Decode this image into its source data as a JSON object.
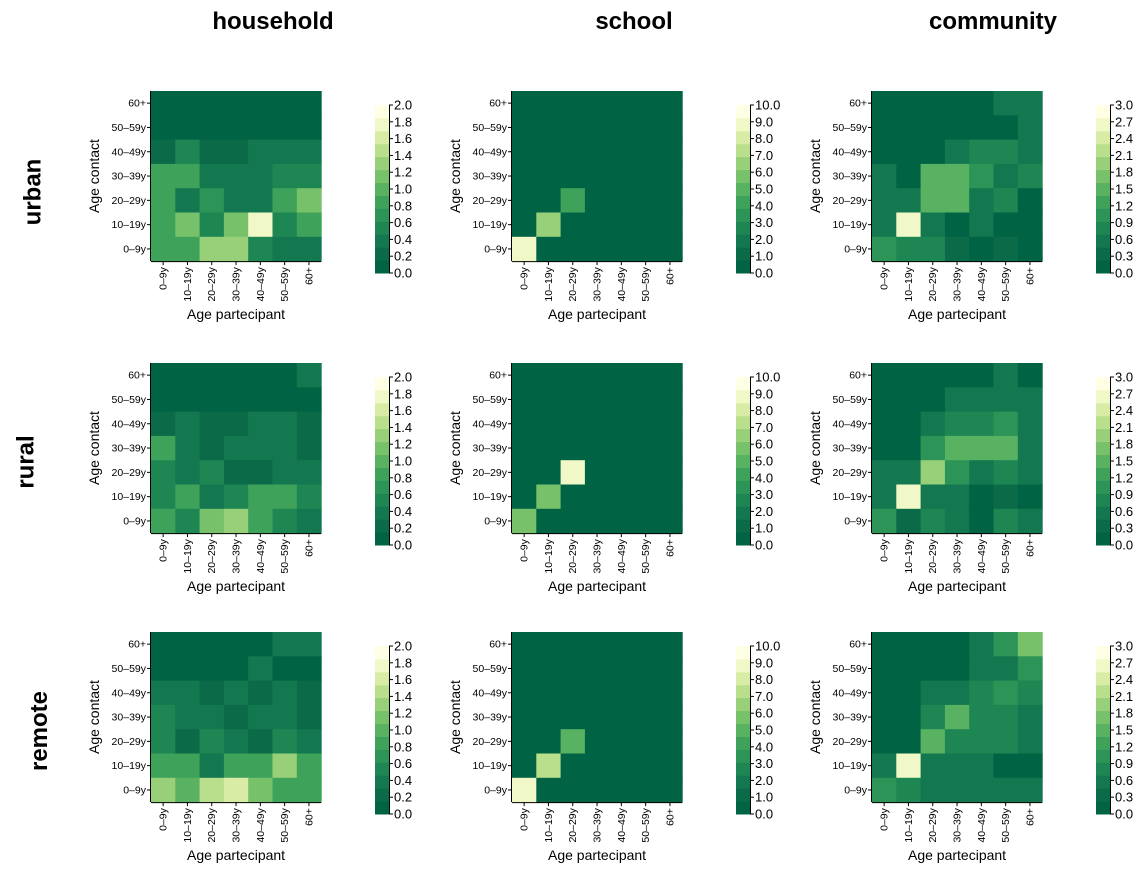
{
  "column_titles": [
    "household",
    "school",
    "community"
  ],
  "row_titles": [
    "urban",
    "rural",
    "remote"
  ],
  "colors": {
    "scale": [
      "#006344",
      "#0b6b49",
      "#137850",
      "#1e8653",
      "#2c9456",
      "#3fa25b",
      "#59b162",
      "#77c16b",
      "#98d079",
      "#badf8c",
      "#d9eca5",
      "#f1f8c8",
      "#ffffe5"
    ],
    "axis": "#000000"
  },
  "chart_data": [
    {
      "type": "heatmap",
      "area": "urban",
      "setting": "household",
      "x_categories": [
        "0–9y",
        "10–19y",
        "20–29y",
        "30–39y",
        "40–49y",
        "50–59y",
        "60+"
      ],
      "y_categories": [
        "0–9y",
        "10–19y",
        "20–29y",
        "30–39y",
        "40–49y",
        "50–59y",
        "60+"
      ],
      "xlabel": "Age partecipant",
      "ylabel": "Age contact",
      "zlim": [
        0,
        2
      ],
      "colorbar_ticks": [
        "0.0",
        "0.2",
        "0.4",
        "0.6",
        "0.8",
        "1.0",
        "1.2",
        "1.4",
        "1.6",
        "1.8",
        "2.0"
      ],
      "values": [
        [
          0.0,
          0.0,
          0.0,
          0.0,
          0.0,
          0.0,
          0.0
        ],
        [
          0.0,
          0.0,
          0.0,
          0.0,
          0.0,
          0.0,
          0.0
        ],
        [
          0.1,
          0.5,
          0.1,
          0.1,
          0.3,
          0.3,
          0.3
        ],
        [
          0.9,
          0.9,
          0.3,
          0.3,
          0.3,
          0.5,
          0.5
        ],
        [
          0.9,
          0.3,
          0.7,
          0.3,
          0.3,
          0.8,
          1.1
        ],
        [
          0.9,
          1.1,
          0.5,
          1.1,
          1.8,
          0.5,
          0.8
        ],
        [
          0.9,
          0.9,
          1.3,
          1.4,
          0.5,
          0.3,
          0.3
        ]
      ]
    },
    {
      "type": "heatmap",
      "area": "urban",
      "setting": "school",
      "x_categories": [
        "0–9y",
        "10–19y",
        "20–29y",
        "30–39y",
        "40–49y",
        "50–59y",
        "60+"
      ],
      "y_categories": [
        "0–9y",
        "10–19y",
        "20–29y",
        "30–39y",
        "40–49y",
        "50–59y",
        "60+"
      ],
      "xlabel": "Age partecipant",
      "ylabel": "Age contact",
      "zlim": [
        0,
        10
      ],
      "colorbar_ticks": [
        "0.0",
        "1.0",
        "2.0",
        "3.0",
        "4.0",
        "5.0",
        "6.0",
        "7.0",
        "8.0",
        "9.0",
        "10.0"
      ],
      "values": [
        [
          0,
          0,
          0,
          0,
          0,
          0,
          0
        ],
        [
          0,
          0,
          0,
          0,
          0,
          0,
          0
        ],
        [
          0,
          0,
          0,
          0,
          0,
          0,
          0
        ],
        [
          0,
          0,
          0,
          0,
          0,
          0,
          0
        ],
        [
          0,
          0,
          4.2,
          0,
          0,
          0,
          0
        ],
        [
          0,
          6.8,
          0,
          0,
          0,
          0,
          0
        ],
        [
          9.0,
          0,
          0,
          0,
          0,
          0,
          0
        ]
      ]
    },
    {
      "type": "heatmap",
      "area": "urban",
      "setting": "community",
      "x_categories": [
        "0–9y",
        "10–19y",
        "20–29y",
        "30–39y",
        "40–49y",
        "50–59y",
        "60+"
      ],
      "y_categories": [
        "0–9y",
        "10–19y",
        "20–29y",
        "30–39y",
        "40–49y",
        "50–59y",
        "60+"
      ],
      "xlabel": "Age partecipant",
      "ylabel": "Age contact",
      "zlim": [
        0,
        3
      ],
      "colorbar_ticks": [
        "0.0",
        "0.3",
        "0.6",
        "0.9",
        "1.2",
        "1.5",
        "1.8",
        "2.1",
        "2.4",
        "2.7",
        "3.0"
      ],
      "values": [
        [
          0.1,
          0.1,
          0.1,
          0.1,
          0.1,
          0.5,
          0.5
        ],
        [
          0.1,
          0.1,
          0.1,
          0.1,
          0.1,
          0.1,
          0.5
        ],
        [
          0.1,
          0.1,
          0.1,
          0.5,
          0.8,
          0.8,
          0.5
        ],
        [
          0.5,
          0.1,
          1.4,
          1.4,
          1.1,
          0.5,
          0.8
        ],
        [
          0.5,
          0.5,
          1.6,
          1.4,
          0.5,
          0.8,
          0.1
        ],
        [
          0.5,
          2.8,
          0.5,
          0.1,
          0.5,
          0.1,
          0.1
        ],
        [
          1.0,
          0.8,
          0.8,
          0.3,
          0.1,
          0.3,
          0.1
        ]
      ]
    },
    {
      "type": "heatmap",
      "area": "rural",
      "setting": "household",
      "x_categories": [
        "0–9y",
        "10–19y",
        "20–29y",
        "30–39y",
        "40–49y",
        "50–59y",
        "60+"
      ],
      "y_categories": [
        "0–9y",
        "10–19y",
        "20–29y",
        "30–39y",
        "40–49y",
        "50–59y",
        "60+"
      ],
      "xlabel": "Age partecipant",
      "ylabel": "Age contact",
      "zlim": [
        0,
        2
      ],
      "colorbar_ticks": [
        "0.0",
        "0.2",
        "0.4",
        "0.6",
        "0.8",
        "1.0",
        "1.2",
        "1.4",
        "1.6",
        "1.8",
        "2.0"
      ],
      "values": [
        [
          0.0,
          0.0,
          0.0,
          0.0,
          0.0,
          0.0,
          0.3
        ],
        [
          0.0,
          0.0,
          0.0,
          0.0,
          0.0,
          0.0,
          0.0
        ],
        [
          0.1,
          0.3,
          0.1,
          0.1,
          0.3,
          0.3,
          0.1
        ],
        [
          0.9,
          0.3,
          0.1,
          0.3,
          0.3,
          0.3,
          0.1
        ],
        [
          0.5,
          0.3,
          0.5,
          0.1,
          0.1,
          0.3,
          0.3
        ],
        [
          0.5,
          0.8,
          0.3,
          0.5,
          0.9,
          0.9,
          0.5
        ],
        [
          0.9,
          0.5,
          1.2,
          1.4,
          0.8,
          0.5,
          0.3
        ]
      ]
    },
    {
      "type": "heatmap",
      "area": "rural",
      "setting": "school",
      "x_categories": [
        "0–9y",
        "10–19y",
        "20–29y",
        "30–39y",
        "40–49y",
        "50–59y",
        "60+"
      ],
      "y_categories": [
        "0–9y",
        "10–19y",
        "20–29y",
        "30–39y",
        "40–49y",
        "50–59y",
        "60+"
      ],
      "xlabel": "Age partecipant",
      "ylabel": "Age contact",
      "zlim": [
        0,
        10
      ],
      "colorbar_ticks": [
        "0.0",
        "1.0",
        "2.0",
        "3.0",
        "4.0",
        "5.0",
        "6.0",
        "7.0",
        "8.0",
        "9.0",
        "10.0"
      ],
      "values": [
        [
          0,
          0,
          0,
          0,
          0,
          0,
          0
        ],
        [
          0,
          0,
          0,
          0,
          0,
          0,
          0
        ],
        [
          0,
          0,
          0,
          0,
          0,
          0,
          0
        ],
        [
          0,
          0,
          0,
          0,
          0,
          0,
          0
        ],
        [
          0,
          0,
          9.2,
          0,
          0,
          0,
          0
        ],
        [
          0,
          6.2,
          0,
          0,
          0,
          0,
          0
        ],
        [
          6.0,
          0,
          0,
          0,
          0,
          0,
          0
        ]
      ]
    },
    {
      "type": "heatmap",
      "area": "rural",
      "setting": "community",
      "x_categories": [
        "0–9y",
        "10–19y",
        "20–29y",
        "30–39y",
        "40–49y",
        "50–59y",
        "60+"
      ],
      "y_categories": [
        "0–9y",
        "10–19y",
        "20–29y",
        "30–39y",
        "40–49y",
        "50–59y",
        "60+"
      ],
      "xlabel": "Age partecipant",
      "ylabel": "Age contact",
      "zlim": [
        0,
        3
      ],
      "colorbar_ticks": [
        "0.0",
        "0.3",
        "0.6",
        "0.9",
        "1.2",
        "1.5",
        "1.8",
        "2.1",
        "2.4",
        "2.7",
        "3.0"
      ],
      "values": [
        [
          0.1,
          0.1,
          0.1,
          0.1,
          0.1,
          0.5,
          0.1
        ],
        [
          0.1,
          0.1,
          0.1,
          0.5,
          0.5,
          0.5,
          0.5
        ],
        [
          0.1,
          0.1,
          0.5,
          0.8,
          0.8,
          1.1,
          0.5
        ],
        [
          0.1,
          0.1,
          1.1,
          1.4,
          1.4,
          1.4,
          0.5
        ],
        [
          0.5,
          0.5,
          2.0,
          1.1,
          0.5,
          0.8,
          0.5
        ],
        [
          0.5,
          2.8,
          0.5,
          0.5,
          0.1,
          0.3,
          0.1
        ],
        [
          1.0,
          0.3,
          0.8,
          0.5,
          0.1,
          0.8,
          0.5
        ]
      ]
    },
    {
      "type": "heatmap",
      "area": "remote",
      "setting": "household",
      "x_categories": [
        "0–9y",
        "10–19y",
        "20–29y",
        "30–39y",
        "40–49y",
        "50–59y",
        "60+"
      ],
      "y_categories": [
        "0–9y",
        "10–19y",
        "20–29y",
        "30–39y",
        "40–49y",
        "50–59y",
        "60+"
      ],
      "xlabel": "Age partecipant",
      "ylabel": "Age contact",
      "zlim": [
        0,
        2
      ],
      "colorbar_ticks": [
        "0.0",
        "0.2",
        "0.4",
        "0.6",
        "0.8",
        "1.0",
        "1.2",
        "1.4",
        "1.6",
        "1.8",
        "2.0"
      ],
      "values": [
        [
          0.0,
          0.0,
          0.0,
          0.0,
          0.0,
          0.3,
          0.3
        ],
        [
          0.0,
          0.0,
          0.0,
          0.0,
          0.3,
          0.0,
          0.0
        ],
        [
          0.3,
          0.3,
          0.1,
          0.3,
          0.1,
          0.3,
          0.1
        ],
        [
          0.5,
          0.3,
          0.3,
          0.1,
          0.3,
          0.3,
          0.1
        ],
        [
          0.5,
          0.1,
          0.5,
          0.3,
          0.1,
          0.5,
          0.3
        ],
        [
          0.9,
          0.9,
          0.3,
          0.9,
          0.9,
          1.4,
          0.8
        ],
        [
          1.3,
          1.0,
          1.5,
          1.6,
          1.2,
          0.8,
          0.8
        ]
      ]
    },
    {
      "type": "heatmap",
      "area": "remote",
      "setting": "school",
      "x_categories": [
        "0–9y",
        "10–19y",
        "20–29y",
        "30–39y",
        "40–49y",
        "50–59y",
        "60+"
      ],
      "y_categories": [
        "0–9y",
        "10–19y",
        "20–29y",
        "30–39y",
        "40–49y",
        "50–59y",
        "60+"
      ],
      "xlabel": "Age partecipant",
      "ylabel": "Age contact",
      "zlim": [
        0,
        10
      ],
      "colorbar_ticks": [
        "0.0",
        "1.0",
        "2.0",
        "3.0",
        "4.0",
        "5.0",
        "6.0",
        "7.0",
        "8.0",
        "9.0",
        "10.0"
      ],
      "values": [
        [
          0,
          0,
          0,
          0,
          0,
          0,
          0
        ],
        [
          0,
          0,
          0,
          0,
          0,
          0,
          0
        ],
        [
          0,
          0,
          0,
          0,
          0,
          0,
          0
        ],
        [
          0,
          0,
          0,
          0,
          0,
          0,
          0
        ],
        [
          0,
          0,
          5.2,
          0,
          0,
          0,
          0
        ],
        [
          0,
          7.2,
          0,
          0,
          0,
          0,
          0
        ],
        [
          9.0,
          0,
          0,
          0,
          0,
          0,
          0
        ]
      ]
    },
    {
      "type": "heatmap",
      "area": "remote",
      "setting": "community",
      "x_categories": [
        "0–9y",
        "10–19y",
        "20–29y",
        "30–39y",
        "40–49y",
        "50–59y",
        "60+"
      ],
      "y_categories": [
        "0–9y",
        "10–19y",
        "20–29y",
        "30–39y",
        "40–49y",
        "50–59y",
        "60+"
      ],
      "xlabel": "Age partecipant",
      "ylabel": "Age contact",
      "zlim": [
        0,
        3
      ],
      "colorbar_ticks": [
        "0.0",
        "0.3",
        "0.6",
        "0.9",
        "1.2",
        "1.5",
        "1.8",
        "2.1",
        "2.4",
        "2.7",
        "3.0"
      ],
      "values": [
        [
          0.1,
          0.1,
          0.1,
          0.1,
          0.5,
          1.1,
          1.7
        ],
        [
          0.1,
          0.1,
          0.1,
          0.1,
          0.5,
          0.5,
          1.1
        ],
        [
          0.1,
          0.1,
          0.5,
          0.5,
          0.8,
          1.1,
          0.8
        ],
        [
          0.1,
          0.1,
          0.8,
          1.4,
          0.8,
          0.8,
          0.5
        ],
        [
          0.1,
          0.1,
          1.6,
          0.8,
          0.8,
          0.8,
          0.5
        ],
        [
          0.5,
          2.8,
          0.5,
          0.5,
          0.5,
          0.1,
          0.1
        ],
        [
          1.0,
          0.8,
          0.5,
          0.5,
          0.5,
          0.5,
          0.5
        ]
      ]
    }
  ]
}
